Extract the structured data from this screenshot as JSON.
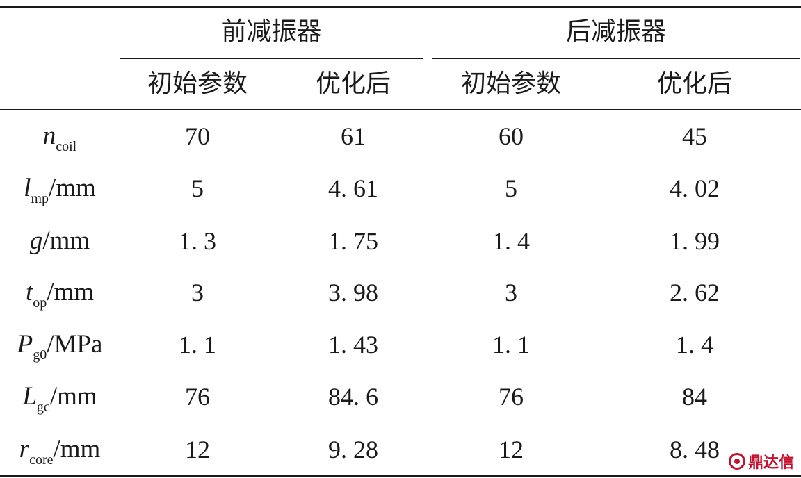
{
  "table": {
    "groups": [
      "前减振器",
      "后减振器"
    ],
    "subheaders": [
      "初始参数",
      "优化后",
      "初始参数",
      "优化后"
    ],
    "rows": [
      {
        "symbol": "n",
        "sub": "coil",
        "unit": "",
        "values": [
          "70",
          "61",
          "60",
          "45"
        ]
      },
      {
        "symbol": "l",
        "sub": "mp",
        "unit": "/mm",
        "values": [
          "5",
          "4. 61",
          "5",
          "4. 02"
        ]
      },
      {
        "symbol": "g",
        "sub": "",
        "unit": "/mm",
        "values": [
          "1. 3",
          "1. 75",
          "1. 4",
          "1. 99"
        ]
      },
      {
        "symbol": "t",
        "sub": "op",
        "unit": "/mm",
        "values": [
          "3",
          "3. 98",
          "3",
          "2. 62"
        ]
      },
      {
        "symbol": "P",
        "sub": "g0",
        "unit": "/MPa",
        "values": [
          "1. 1",
          "1. 43",
          "1. 1",
          "1. 4"
        ]
      },
      {
        "symbol": "L",
        "sub": "gc",
        "unit": "/mm",
        "values": [
          "76",
          "84. 6",
          "76",
          "84"
        ]
      },
      {
        "symbol": "r",
        "sub": "core",
        "unit": "/mm",
        "values": [
          "12",
          "9. 28",
          "12",
          "8. 48"
        ]
      }
    ]
  },
  "watermark": {
    "text": "鼎达信",
    "color": "#c8102e"
  }
}
